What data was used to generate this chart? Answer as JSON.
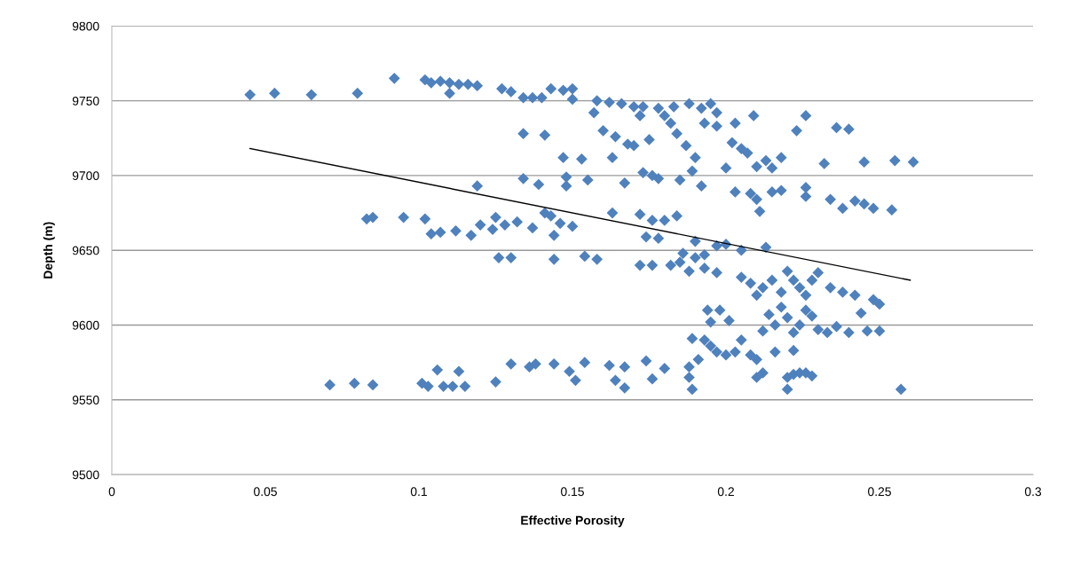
{
  "chart_data": {
    "type": "scatter",
    "xlabel": "Effective Porosity",
    "ylabel": "Depth (m)",
    "xlim": [
      0,
      0.3
    ],
    "xticks": [
      0,
      0.05,
      0.1,
      0.15,
      0.2,
      0.25,
      0.3
    ],
    "ylim": [
      9500,
      9800
    ],
    "yticks": [
      9500,
      9550,
      9600,
      9650,
      9700,
      9750,
      9800
    ],
    "grid": "y",
    "legend": false,
    "series": [
      {
        "color": "#4f81bd",
        "marker": "diamond",
        "x": [
          0.045,
          0.053,
          0.065,
          0.08,
          0.092,
          0.102,
          0.104,
          0.107,
          0.11,
          0.11,
          0.113,
          0.116,
          0.119,
          0.127,
          0.13,
          0.134,
          0.137,
          0.14,
          0.143,
          0.147,
          0.15,
          0.15,
          0.158,
          0.162,
          0.166,
          0.17,
          0.173,
          0.178,
          0.183,
          0.188,
          0.192,
          0.195,
          0.197,
          0.134,
          0.141,
          0.147,
          0.153,
          0.157,
          0.16,
          0.163,
          0.164,
          0.168,
          0.17,
          0.172,
          0.173,
          0.175,
          0.176,
          0.178,
          0.18,
          0.182,
          0.184,
          0.185,
          0.187,
          0.189,
          0.19,
          0.192,
          0.193,
          0.197,
          0.2,
          0.202,
          0.203,
          0.205,
          0.207,
          0.209,
          0.21,
          0.213,
          0.215,
          0.218,
          0.223,
          0.226,
          0.232,
          0.236,
          0.24,
          0.245,
          0.255,
          0.261,
          0.083,
          0.085,
          0.095,
          0.102,
          0.104,
          0.107,
          0.112,
          0.117,
          0.119,
          0.12,
          0.124,
          0.125,
          0.128,
          0.132,
          0.134,
          0.137,
          0.139,
          0.141,
          0.143,
          0.144,
          0.146,
          0.148,
          0.148,
          0.15,
          0.155,
          0.163,
          0.167,
          0.172,
          0.174,
          0.176,
          0.178,
          0.18,
          0.184,
          0.186,
          0.19,
          0.193,
          0.197,
          0.2,
          0.203,
          0.205,
          0.208,
          0.21,
          0.211,
          0.213,
          0.215,
          0.218,
          0.226,
          0.226,
          0.234,
          0.238,
          0.242,
          0.245,
          0.248,
          0.254,
          0.126,
          0.13,
          0.144,
          0.154,
          0.158,
          0.172,
          0.176,
          0.182,
          0.185,
          0.188,
          0.19,
          0.193,
          0.197,
          0.205,
          0.208,
          0.21,
          0.212,
          0.215,
          0.218,
          0.22,
          0.222,
          0.224,
          0.226,
          0.228,
          0.23,
          0.234,
          0.238,
          0.242,
          0.248,
          0.25,
          0.194,
          0.198,
          0.195,
          0.189,
          0.193,
          0.201,
          0.205,
          0.208,
          0.212,
          0.214,
          0.216,
          0.218,
          0.22,
          0.222,
          0.224,
          0.226,
          0.228,
          0.23,
          0.233,
          0.236,
          0.24,
          0.244,
          0.246,
          0.25,
          0.197,
          0.2,
          0.203,
          0.21,
          0.216,
          0.222,
          0.191,
          0.195,
          0.071,
          0.079,
          0.085,
          0.101,
          0.103,
          0.106,
          0.108,
          0.111,
          0.113,
          0.115,
          0.125,
          0.13,
          0.136,
          0.138,
          0.144,
          0.149,
          0.151,
          0.154,
          0.162,
          0.164,
          0.167,
          0.167,
          0.174,
          0.176,
          0.18,
          0.188,
          0.189,
          0.188,
          0.212,
          0.21,
          0.22,
          0.22,
          0.222,
          0.224,
          0.226,
          0.228,
          0.257
        ],
        "values": [
          9754,
          9755,
          9754,
          9755,
          9765,
          9764,
          9762,
          9763,
          9762,
          9755,
          9761,
          9761,
          9760,
          9758,
          9756,
          9752,
          9752,
          9752,
          9758,
          9757,
          9758,
          9751,
          9750,
          9749,
          9748,
          9746,
          9746,
          9745,
          9746,
          9748,
          9745,
          9748,
          9742,
          9728,
          9727,
          9712,
          9711,
          9742,
          9730,
          9712,
          9726,
          9721,
          9720,
          9740,
          9702,
          9724,
          9700,
          9698,
          9740,
          9735,
          9728,
          9697,
          9720,
          9703,
          9712,
          9693,
          9735,
          9733,
          9705,
          9722,
          9735,
          9718,
          9715,
          9740,
          9706,
          9710,
          9705,
          9712,
          9730,
          9740,
          9708,
          9732,
          9731,
          9709,
          9710,
          9709,
          9671,
          9672,
          9672,
          9671,
          9661,
          9662,
          9663,
          9660,
          9693,
          9667,
          9664,
          9672,
          9667,
          9669,
          9698,
          9665,
          9694,
          9675,
          9673,
          9660,
          9668,
          9693,
          9699,
          9666,
          9697,
          9675,
          9695,
          9674,
          9659,
          9670,
          9658,
          9670,
          9673,
          9648,
          9656,
          9647,
          9653,
          9654,
          9689,
          9650,
          9688,
          9684,
          9676,
          9652,
          9689,
          9690,
          9692,
          9686,
          9684,
          9678,
          9683,
          9681,
          9678,
          9677,
          9645,
          9645,
          9644,
          9646,
          9644,
          9640,
          9640,
          9640,
          9642,
          9636,
          9645,
          9638,
          9635,
          9632,
          9628,
          9620,
          9625,
          9630,
          9622,
          9636,
          9630,
          9625,
          9620,
          9630,
          9635,
          9625,
          9622,
          9620,
          9617,
          9614,
          9610,
          9610,
          9602,
          9591,
          9590,
          9603,
          9590,
          9580,
          9596,
          9607,
          9600,
          9612,
          9605,
          9595,
          9600,
          9610,
          9606,
          9597,
          9595,
          9599,
          9595,
          9608,
          9596,
          9596,
          9582,
          9580,
          9582,
          9577,
          9582,
          9583,
          9577,
          9586,
          9560,
          9561,
          9560,
          9561,
          9559,
          9570,
          9559,
          9559,
          9569,
          9559,
          9562,
          9574,
          9572,
          9574,
          9574,
          9569,
          9563,
          9575,
          9573,
          9563,
          9572,
          9558,
          9576,
          9564,
          9571,
          9565,
          9557,
          9572,
          9568,
          9565,
          9557,
          9565,
          9567,
          9568,
          9568,
          9566,
          9557
        ]
      },
      {
        "type": "line",
        "color": "#000000",
        "marker": "none",
        "line_style": "solid",
        "x": [
          0.045,
          0.26
        ],
        "values": [
          9718,
          9630
        ]
      }
    ]
  }
}
